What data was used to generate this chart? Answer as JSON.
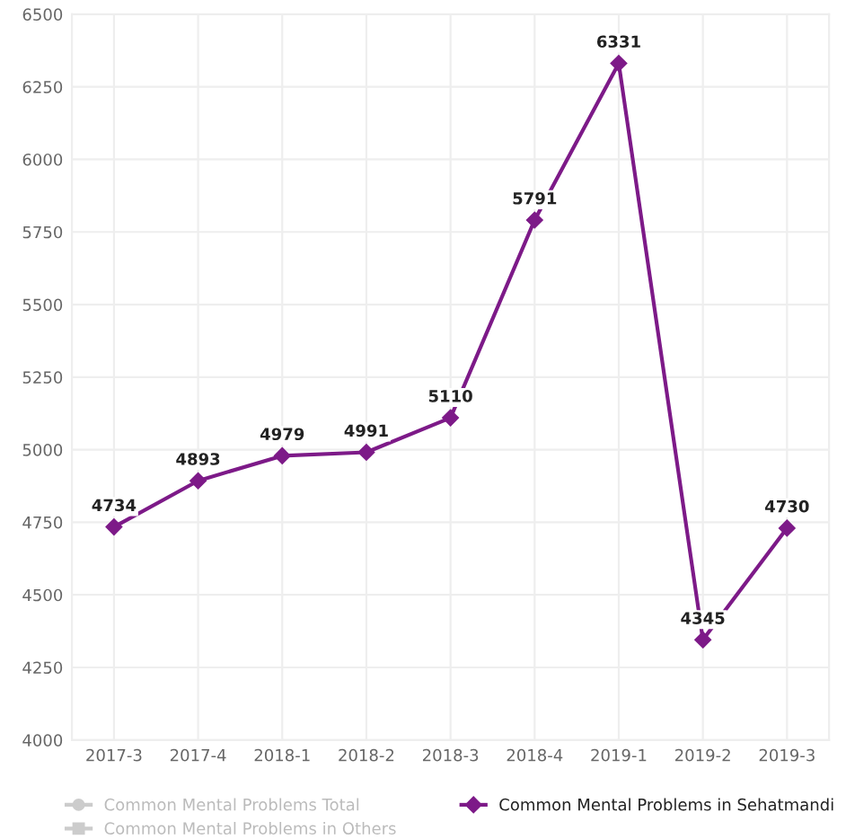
{
  "chart_data": {
    "type": "line",
    "categories": [
      "2017-3",
      "2017-4",
      "2018-1",
      "2018-2",
      "2018-3",
      "2018-4",
      "2019-1",
      "2019-2",
      "2019-3"
    ],
    "series": [
      {
        "name": "Common Mental Problems Total",
        "color": "#cccccc",
        "marker": "circle",
        "values": [
          null,
          null,
          null,
          null,
          null,
          null,
          null,
          null,
          null
        ]
      },
      {
        "name": "Common Mental Problems in Others",
        "color": "#cccccc",
        "marker": "square",
        "values": [
          null,
          null,
          null,
          null,
          null,
          null,
          null,
          null,
          null
        ]
      },
      {
        "name": "Common Mental Problems in Sehatmandi",
        "color": "#7d1a88",
        "marker": "diamond",
        "values": [
          4734,
          4893,
          4979,
          4991,
          5110,
          5791,
          6331,
          4345,
          4730
        ]
      }
    ],
    "ylim": [
      4000,
      6500
    ],
    "yticks": [
      4000,
      4250,
      4500,
      4750,
      5000,
      5250,
      5500,
      5750,
      6000,
      6250,
      6500
    ],
    "grid": true,
    "legend": "bottom",
    "data_labels": true,
    "line_style": "solid"
  }
}
